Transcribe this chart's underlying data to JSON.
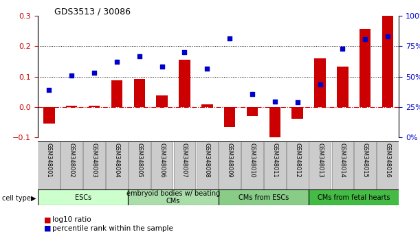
{
  "title": "GDS3513 / 30086",
  "samples": [
    "GSM348001",
    "GSM348002",
    "GSM348003",
    "GSM348004",
    "GSM348005",
    "GSM348006",
    "GSM348007",
    "GSM348008",
    "GSM348009",
    "GSM348010",
    "GSM348011",
    "GSM348012",
    "GSM348013",
    "GSM348014",
    "GSM348015",
    "GSM348016"
  ],
  "log10_ratio": [
    -0.055,
    0.005,
    0.005,
    0.088,
    0.093,
    0.037,
    0.155,
    0.008,
    -0.065,
    -0.03,
    -0.105,
    -0.04,
    0.16,
    0.133,
    0.257,
    0.3
  ],
  "percentile_rank": [
    0.055,
    0.103,
    0.112,
    0.148,
    0.167,
    0.133,
    0.18,
    0.127,
    0.225,
    0.042,
    0.017,
    0.015,
    0.073,
    0.192,
    0.223,
    0.233
  ],
  "bar_color": "#cc0000",
  "dot_color": "#0000cc",
  "ylim_left": [
    -0.1,
    0.3
  ],
  "yticks_left": [
    -0.1,
    0.0,
    0.1,
    0.2,
    0.3
  ],
  "yticks_right": [
    0,
    25,
    50,
    75,
    100
  ],
  "cell_type_groups": [
    {
      "label": "ESCs",
      "start": 0,
      "end": 4
    },
    {
      "label": "embryoid bodies w/ beating\nCMs",
      "start": 4,
      "end": 8
    },
    {
      "label": "CMs from ESCs",
      "start": 8,
      "end": 12
    },
    {
      "label": "CMs from fetal hearts",
      "start": 12,
      "end": 16
    }
  ],
  "group_colors": [
    "#ccffcc",
    "#aaddaa",
    "#88cc88",
    "#44bb44"
  ],
  "zero_line_color": "#cc0000",
  "sample_box_color": "#cccccc",
  "sample_box_edge": "#888888"
}
